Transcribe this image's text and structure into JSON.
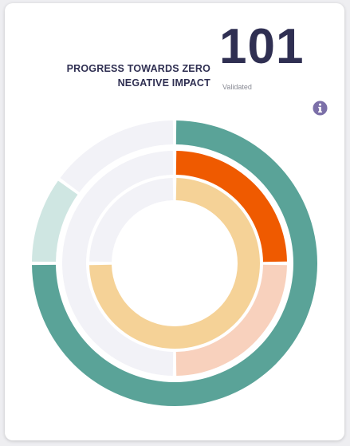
{
  "header": {
    "title_line1": "PROGRESS TOWARDS ZERO",
    "title_line2": "NEGATIVE IMPACT",
    "value": "101",
    "value_label": "Validated"
  },
  "icons": {
    "info": "info-icon"
  },
  "colors": {
    "text_dark": "#2f2f52",
    "info_icon": "#7b6fa8",
    "track": "#f2f2f7",
    "outer_main": "#5aa398",
    "outer_light": "#cfe6e2",
    "middle_main": "#ef5a00",
    "middle_light": "#f8d1bd",
    "inner_main": "#f5d297"
  },
  "chart_data": {
    "type": "radial-bar",
    "rings": [
      {
        "segments": [
          {
            "value": 0.75,
            "color": "#5aa398"
          },
          {
            "value": 0.1,
            "color": "#cfe6e2"
          },
          {
            "value": 0.15,
            "color": "#f2f2f7"
          }
        ]
      },
      {
        "segments": [
          {
            "value": 0.25,
            "color": "#ef5a00"
          },
          {
            "value": 0.25,
            "color": "#f8d1bd"
          },
          {
            "value": 0.5,
            "color": "#f2f2f7"
          }
        ]
      },
      {
        "segments": [
          {
            "value": 0.75,
            "color": "#f5d297"
          },
          {
            "value": 0.25,
            "color": "#f2f2f7"
          }
        ]
      }
    ]
  }
}
